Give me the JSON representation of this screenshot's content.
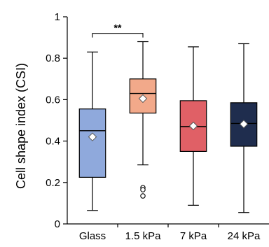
{
  "chart_data": {
    "type": "box",
    "title": "",
    "xlabel": "",
    "ylabel": "Cell shape index (CSI)",
    "ylim": [
      0,
      1
    ],
    "yticks": [
      0,
      0.2,
      0.4,
      0.6,
      0.8,
      1
    ],
    "ytick_labels": [
      "0",
      "0.2",
      "0.4",
      "0.6",
      "0.8",
      "1"
    ],
    "categories": [
      "Glass",
      "1.5 kPa",
      "7 kPa",
      "24 kPa"
    ],
    "boxes": [
      {
        "category": "Glass",
        "color": "#8fa9dc",
        "whisker_low": 0.065,
        "q1": 0.225,
        "median": 0.45,
        "q3": 0.555,
        "whisker_high": 0.83,
        "mean": 0.42,
        "outliers": []
      },
      {
        "category": "1.5 kPa",
        "color": "#f2a98a",
        "whisker_low": 0.285,
        "q1": 0.535,
        "median": 0.63,
        "q3": 0.7,
        "whisker_high": 0.88,
        "mean": 0.605,
        "outliers": [
          0.175,
          0.165,
          0.135
        ]
      },
      {
        "category": "7 kPa",
        "color": "#e06066",
        "whisker_low": 0.09,
        "q1": 0.35,
        "median": 0.47,
        "q3": 0.595,
        "whisker_high": 0.855,
        "mean": 0.473,
        "outliers": []
      },
      {
        "category": "24 kPa",
        "color": "#1f2d4e",
        "whisker_low": 0.055,
        "q1": 0.375,
        "median": 0.485,
        "q3": 0.585,
        "whisker_high": 0.87,
        "mean": 0.482,
        "outliers": []
      }
    ],
    "significance": [
      {
        "from": "Glass",
        "to": "1.5 kPa",
        "label": "**",
        "y": 0.92
      }
    ],
    "grid": false,
    "legend": "none"
  }
}
